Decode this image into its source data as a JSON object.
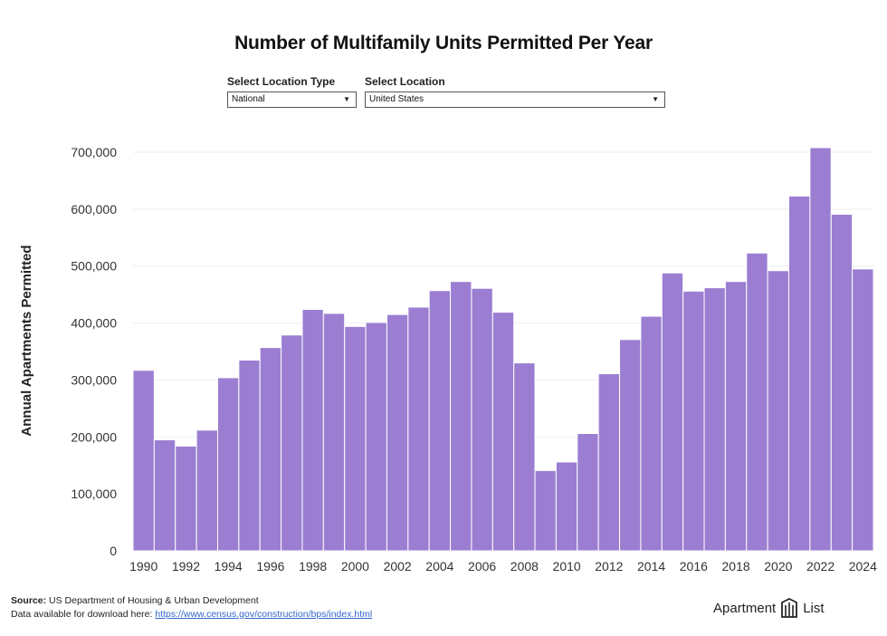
{
  "title": "Number of Multifamily Units Permitted Per Year",
  "controls": {
    "location_type_label": "Select Location Type",
    "location_type_value": "National",
    "location_label": "Select Location",
    "location_value": "United States"
  },
  "colors": {
    "bar": "#9b7ed2",
    "bar_border": "#ffffff",
    "grid": "#eeeeee",
    "link": "#3366cc"
  },
  "chart_data": {
    "type": "bar",
    "title": "Number of Multifamily Units Permitted Per Year",
    "xlabel": "",
    "ylabel": "Annual Apartments Permitted",
    "ylim": [
      0,
      700000
    ],
    "grid": true,
    "categories": [
      "1990",
      "1991",
      "1992",
      "1993",
      "1994",
      "1995",
      "1996",
      "1997",
      "1998",
      "1999",
      "2000",
      "2001",
      "2002",
      "2003",
      "2004",
      "2005",
      "2006",
      "2007",
      "2008",
      "2009",
      "2010",
      "2011",
      "2012",
      "2013",
      "2014",
      "2015",
      "2016",
      "2017",
      "2018",
      "2019",
      "2020",
      "2021",
      "2022",
      "2023",
      "2024"
    ],
    "values": [
      317000,
      195000,
      184000,
      212000,
      304000,
      335000,
      357000,
      379000,
      424000,
      417000,
      394000,
      401000,
      415000,
      428000,
      457000,
      473000,
      461000,
      419000,
      330000,
      141000,
      156000,
      206000,
      311000,
      371000,
      412000,
      488000,
      456000,
      462000,
      473000,
      523000,
      492000,
      623000,
      708000,
      591000,
      495000
    ],
    "y_ticks": [
      "0",
      "100,000",
      "200,000",
      "300,000",
      "400,000",
      "500,000",
      "600,000",
      "700,000"
    ],
    "x_tick_labels": [
      "1990",
      "1992",
      "1994",
      "1996",
      "1998",
      "2000",
      "2002",
      "2004",
      "2006",
      "2008",
      "2010",
      "2012",
      "2014",
      "2016",
      "2018",
      "2020",
      "2022",
      "2024"
    ]
  },
  "footer": {
    "source_label": "Source:",
    "source_text": "US Department of Housing & Urban Development",
    "download_text": "Data available for download here:",
    "download_link": "https://www.census.gov/construction/bps/index.html"
  },
  "brand": {
    "left": "Apartment",
    "right": "List",
    "logo_icon": "apartment-list-logo-icon"
  }
}
